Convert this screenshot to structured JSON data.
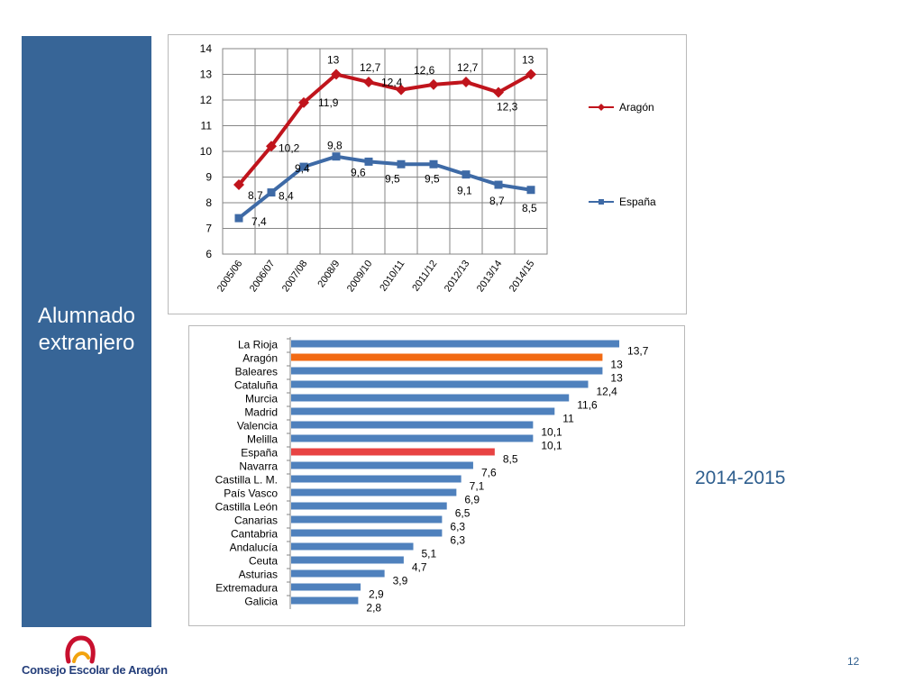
{
  "slide": {
    "title_line1": "Alumnado",
    "title_line2": "extranjero",
    "year_label": "2014-2015",
    "footer_org": "Consejo Escolar de Aragón",
    "page_number": "12"
  },
  "colors": {
    "side_panel": "#376597",
    "aragon_line": "#c0141c",
    "espana_line": "#3e6aa6",
    "bar_default": "#4f81bd",
    "bar_aragon": "#f26a13",
    "bar_espana": "#e84343",
    "logo_red": "#c8102e"
  },
  "chart_data": [
    {
      "type": "line",
      "categories": [
        "2005/06",
        "2006/07",
        "2007/08",
        "2008/9",
        "2009/10",
        "2010/11",
        "2011/12",
        "2012/13",
        "2013/14",
        "2014/15"
      ],
      "series": [
        {
          "name": "Aragón",
          "values": [
            8.7,
            10.2,
            11.9,
            13,
            12.7,
            12.4,
            12.6,
            12.7,
            12.3,
            13
          ],
          "labels": [
            "8,7",
            "10,2",
            "11,9",
            "13",
            "12,7",
            "12,4",
            "12,6",
            "12,7",
            "12,3",
            "13"
          ]
        },
        {
          "name": "España",
          "values": [
            7.4,
            8.4,
            9.4,
            9.8,
            9.6,
            9.5,
            9.5,
            9.1,
            8.7,
            8.5
          ],
          "labels": [
            "7,4",
            "8,4",
            "9,4",
            "9,8",
            "9,6",
            "9,5",
            "9,5",
            "9,1",
            "8,7",
            "8,5"
          ]
        }
      ],
      "ylim": [
        6,
        14
      ],
      "yticks": [
        "6",
        "7",
        "8",
        "9",
        "10",
        "11",
        "12",
        "13",
        "14"
      ],
      "grid": true,
      "legend_position": "right"
    },
    {
      "type": "bar",
      "orientation": "horizontal",
      "categories": [
        "La Rioja",
        "Aragón",
        "Baleares",
        "Cataluña",
        "Murcia",
        "Madrid",
        "Valencia",
        "Melilla",
        "España",
        "Navarra",
        "Castilla L. M.",
        "País Vasco",
        "Castilla  León",
        "Canarias",
        "Cantabria",
        "Andalucía",
        "Ceuta",
        "Asturias",
        "Extremadura",
        "Galicia"
      ],
      "values": [
        13.7,
        13,
        13,
        12.4,
        11.6,
        11,
        10.1,
        10.1,
        8.5,
        7.6,
        7.1,
        6.9,
        6.5,
        6.3,
        6.3,
        5.1,
        4.7,
        3.9,
        2.9,
        2.8
      ],
      "labels": [
        "13,7",
        "13",
        "13",
        "12,4",
        "11,6",
        "11",
        "10,1",
        "10,1",
        "8,5",
        "7,6",
        "7,1",
        "6,9",
        "6,5",
        "6,3",
        "6,3",
        "5,1",
        "4,7",
        "3,9",
        "2,9",
        "2,8"
      ],
      "highlight": {
        "Aragón": "#f26a13",
        "España": "#e84343"
      },
      "xlim": [
        0,
        14
      ]
    }
  ]
}
